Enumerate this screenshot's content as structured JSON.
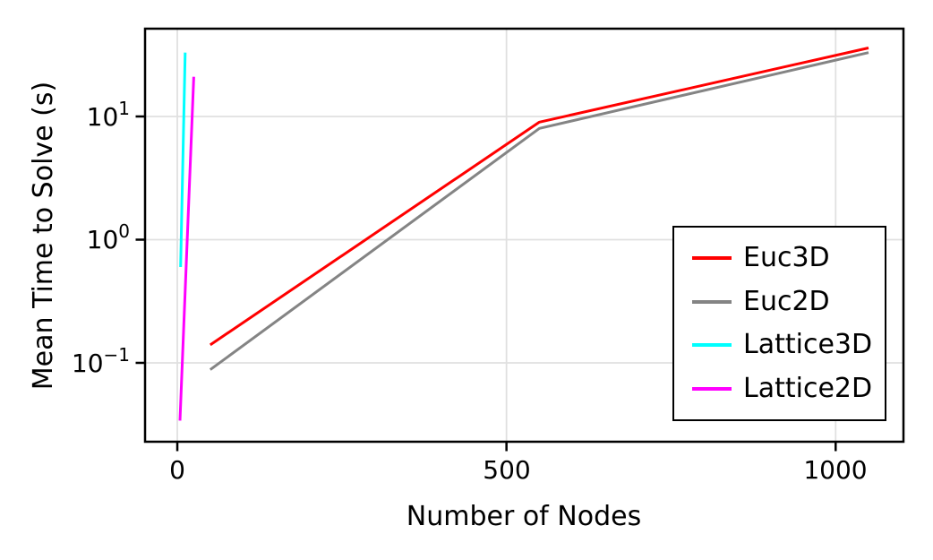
{
  "figure": {
    "xlabel": "Number of Nodes",
    "ylabel": "Mean Time to Solve (s)",
    "x_ticks": [
      "0",
      "500",
      "1000"
    ],
    "y_ticks": [
      {
        "base": "10",
        "exp": "1"
      },
      {
        "base": "10",
        "exp": "0"
      },
      {
        "base": "10",
        "exp": "−1"
      }
    ],
    "background_color": "#ffffff",
    "grid_color": "#e0e0e0",
    "frame_color": "#000000"
  },
  "legend": {
    "items": [
      {
        "label": "Euc3D",
        "color": "#ff0000"
      },
      {
        "label": "Euc2D",
        "color": "#848484"
      },
      {
        "label": "Lattice3D",
        "color": "#00ffff"
      },
      {
        "label": "Lattice2D",
        "color": "#ff00ff"
      }
    ]
  },
  "chart_data": {
    "type": "line",
    "title": "",
    "xlabel": "Number of Nodes",
    "ylabel": "Mean Time to Solve (s)",
    "x_scale": "linear",
    "y_scale": "log",
    "xlim": [
      -49,
      1103
    ],
    "ylim": [
      0.0229,
      51.6
    ],
    "x_tick_values": [
      0,
      500,
      1000
    ],
    "y_tick_values": [
      0.1,
      1,
      10
    ],
    "grid": true,
    "legend_position": "center right",
    "series": [
      {
        "name": "Euc3D",
        "color": "#ff0000",
        "points": [
          [
            50,
            0.14
          ],
          [
            550,
            9
          ],
          [
            1050,
            36
          ]
        ]
      },
      {
        "name": "Euc2D",
        "color": "#848484",
        "points": [
          [
            50,
            0.088
          ],
          [
            550,
            8
          ],
          [
            1050,
            33
          ]
        ]
      },
      {
        "name": "Lattice3D",
        "color": "#00ffff",
        "points": [
          [
            5,
            0.6
          ],
          [
            12,
            33
          ]
        ]
      },
      {
        "name": "Lattice2D",
        "color": "#ff00ff",
        "points": [
          [
            4,
            0.034
          ],
          [
            25,
            21
          ]
        ]
      }
    ]
  }
}
